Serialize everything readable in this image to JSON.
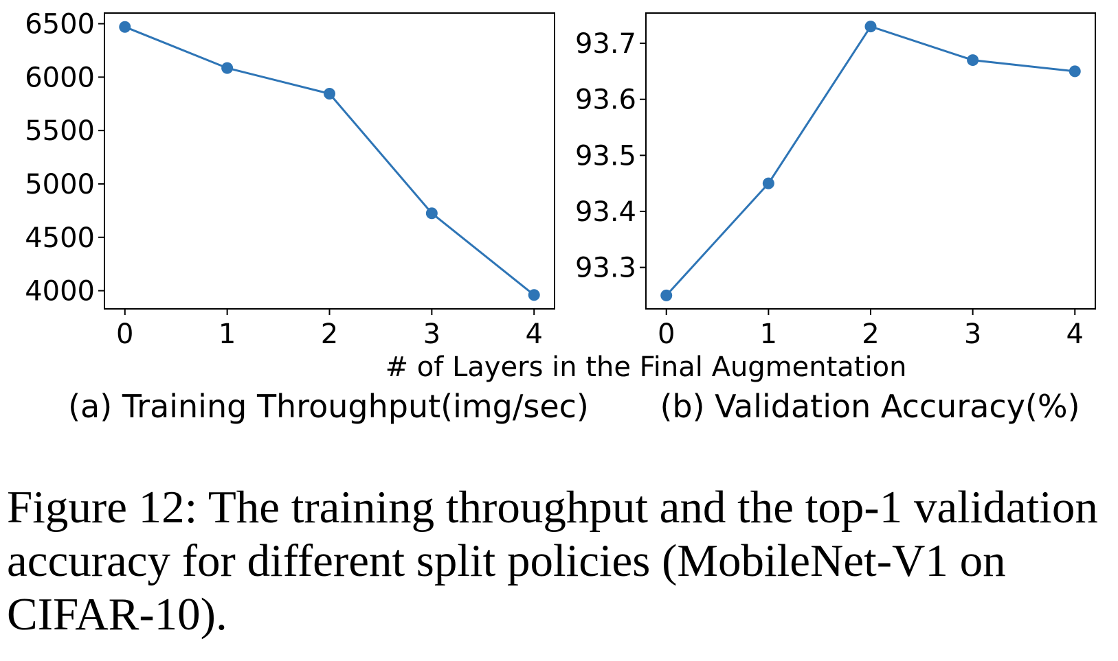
{
  "chart_data": [
    {
      "type": "line",
      "subcaption": "(a) Training Throughput(img/sec)",
      "x": [
        0,
        1,
        2,
        3,
        4
      ],
      "series": [
        {
          "values": [
            6470,
            6085,
            5845,
            4725,
            3960
          ],
          "color": "#2e75b6"
        }
      ],
      "xticks": [
        "0",
        "1",
        "2",
        "3",
        "4"
      ],
      "yticks": [
        4000,
        4500,
        5000,
        5500,
        6000,
        6500
      ],
      "ytick_labels": [
        "4000",
        "4500",
        "5000",
        "5500",
        "6000",
        "6500"
      ],
      "xlim": [
        -0.2,
        4.2
      ],
      "ylim": [
        3830,
        6600
      ],
      "grid": false
    },
    {
      "type": "line",
      "subcaption": "(b) Validation Accuracy(%)",
      "x": [
        0,
        1,
        2,
        3,
        4
      ],
      "series": [
        {
          "values": [
            93.25,
            93.45,
            93.73,
            93.67,
            93.65
          ],
          "color": "#2e75b6"
        }
      ],
      "xticks": [
        "0",
        "1",
        "2",
        "3",
        "4"
      ],
      "yticks": [
        93.3,
        93.4,
        93.5,
        93.6,
        93.7
      ],
      "ytick_labels": [
        "93.3",
        "93.4",
        "93.5",
        "93.6",
        "93.7"
      ],
      "xlim": [
        -0.2,
        4.2
      ],
      "ylim": [
        93.226,
        93.754
      ],
      "grid": false
    }
  ],
  "shared_xlabel": "# of Layers in the Final Augmentation",
  "caption": "Figure 12: The training throughput and the top-1 validation accuracy for different split policies (MobileNet-V1 on CIFAR-10)."
}
